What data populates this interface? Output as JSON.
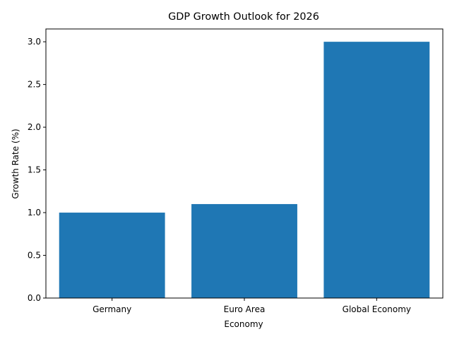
{
  "chart_data": {
    "type": "bar",
    "title": "GDP Growth Outlook for 2026",
    "xlabel": "Economy",
    "ylabel": "Growth Rate (%)",
    "categories": [
      "Germany",
      "Euro Area",
      "Global Economy"
    ],
    "values": [
      1.0,
      1.1,
      3.0
    ],
    "ylim": [
      0,
      3.15
    ],
    "yticks": [
      0.0,
      0.5,
      1.0,
      1.5,
      2.0,
      2.5,
      3.0
    ],
    "ytick_labels": [
      "0.0",
      "0.5",
      "1.0",
      "1.5",
      "2.0",
      "2.5",
      "3.0"
    ],
    "grid": false,
    "bar_color": "#1f77b4"
  }
}
